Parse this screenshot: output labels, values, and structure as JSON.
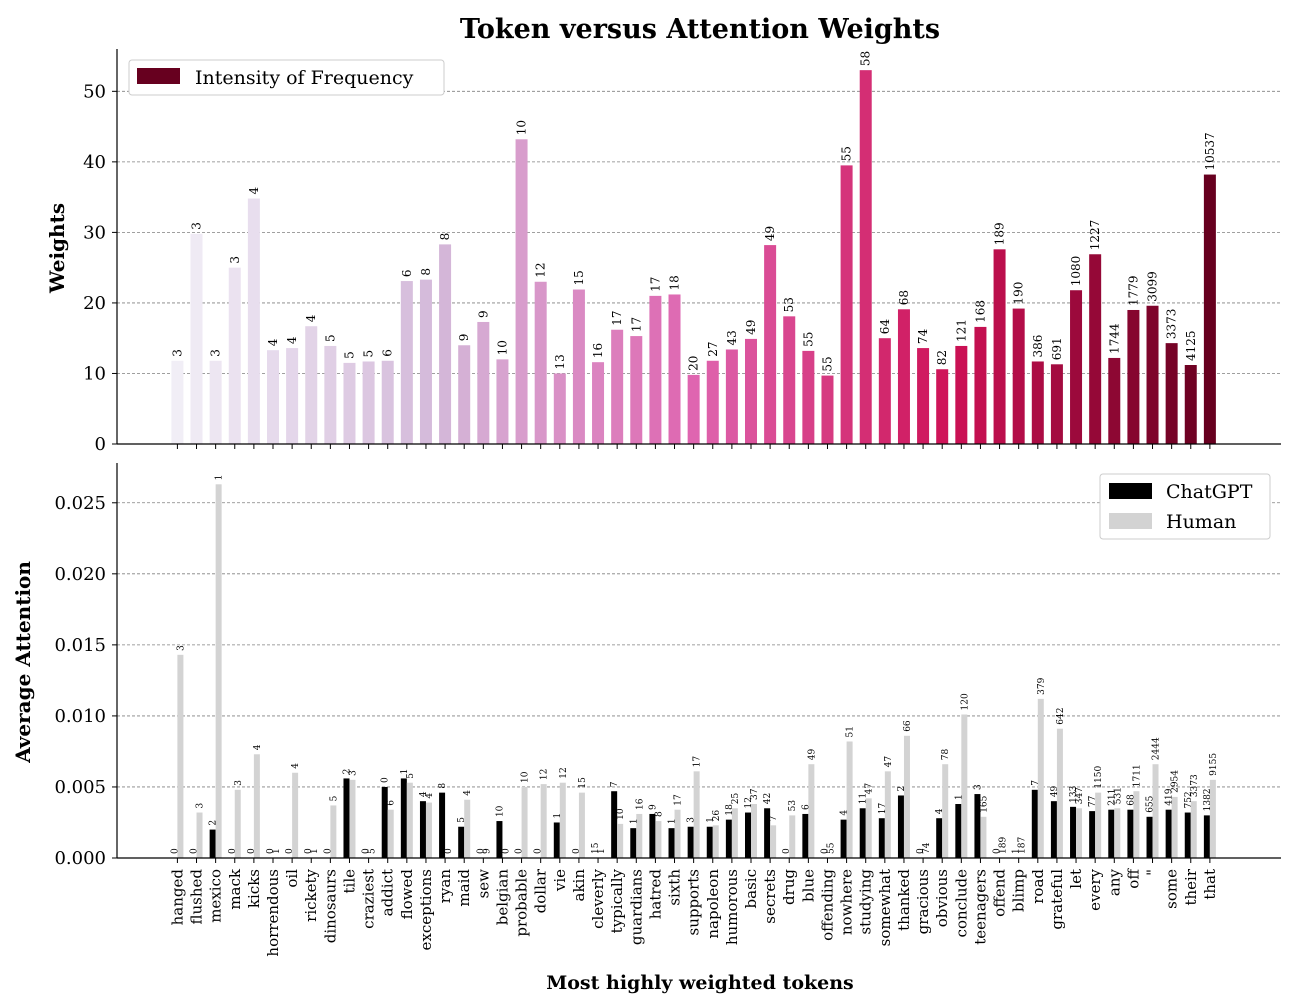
{
  "chart_data": {
    "type": "bar",
    "title": "Token versus Attention Weights",
    "xlabel": "Most highly weighted tokens",
    "tokens": [
      "hanged",
      "flushed",
      "mexico",
      "mack",
      "kicks",
      "horrendous",
      "oil",
      "rickety",
      "dinosaurs",
      "tile",
      "craziest",
      "addict",
      "flowed",
      "exceptions",
      "ryan",
      "maid",
      "sew",
      "belgian",
      "probable",
      "dollar",
      "vie",
      "akin",
      "cleverly",
      "typically",
      "guardians",
      "hatred",
      "sixth",
      "supports",
      "napoleon",
      "humorous",
      "basic",
      "secrets",
      "drug",
      "blue",
      "offending",
      "nowhere",
      "studying",
      "somewhat",
      "thanked",
      "gracious",
      "obvious",
      "conclude",
      "teenagers",
      "offend",
      "blimp",
      "road",
      "grateful",
      "let",
      "every",
      "any",
      "off",
      "\"",
      "some",
      "their",
      "that"
    ],
    "top": {
      "ylabel": "Weights",
      "ylim": [
        0,
        56
      ],
      "yticks": [
        "0",
        "10",
        "20",
        "30",
        "40",
        "50"
      ],
      "legend": "Intensity of Frequency",
      "legend_position": "top-left",
      "weights": [
        11.8,
        29.8,
        11.8,
        25.0,
        34.8,
        13.3,
        13.6,
        16.7,
        13.9,
        11.5,
        11.7,
        11.8,
        23.1,
        23.3,
        28.3,
        14.0,
        17.3,
        12.0,
        43.2,
        23.0,
        10.0,
        21.9,
        11.6,
        16.2,
        15.3,
        21.0,
        21.2,
        9.8,
        11.8,
        13.4,
        14.9,
        28.2,
        18.1,
        13.2,
        9.7,
        39.5,
        53.0,
        15.0,
        19.1,
        13.6,
        10.6,
        13.9,
        16.6,
        27.6,
        19.2,
        11.7,
        11.3,
        21.8,
        26.9,
        12.2,
        19.0,
        19.6,
        14.3,
        11.2,
        38.2
      ],
      "labels": [
        "3",
        "3",
        "3",
        "3",
        "4",
        "4",
        "4",
        "4",
        "5",
        "5",
        "5",
        "6",
        "6",
        "8",
        "8",
        "9",
        "9",
        "10",
        "10",
        "12",
        "13",
        "15",
        "16",
        "17",
        "17",
        "17",
        "18",
        "20",
        "27",
        "43",
        "49",
        "49",
        "53",
        "55",
        "55",
        "55",
        "58",
        "64",
        "68",
        "74",
        "82",
        "121",
        "168",
        "189",
        "190",
        "386",
        "691",
        "1080",
        "1227",
        "1744",
        "1779",
        "3099",
        "3373",
        "4125",
        "10537"
      ]
    },
    "bottom": {
      "ylabel": "Average Attention",
      "ylim": [
        0,
        0.0278
      ],
      "yticks": [
        "0.000",
        "0.005",
        "0.010",
        "0.015",
        "0.020",
        "0.025"
      ],
      "legend_position": "top-right",
      "series": [
        {
          "name": "ChatGPT",
          "color": "#000000",
          "values": [
            0,
            0,
            0.002,
            0,
            0,
            0,
            0,
            0,
            0,
            0.0056,
            0,
            0.005,
            0.0056,
            0.004,
            0.0046,
            0.0022,
            0,
            0.0026,
            0,
            0,
            0.0025,
            0,
            0,
            0.0047,
            0.0021,
            0.0031,
            0.0021,
            0.0022,
            0.0022,
            0.0027,
            0.0032,
            0.0035,
            0,
            0.0031,
            0,
            0.0027,
            0.0035,
            0.0028,
            0.0044,
            0,
            0.0028,
            0.0038,
            0.0045,
            0,
            0,
            0.0048,
            0.004,
            0.0036,
            0.0033,
            0.0034,
            0.0034,
            0.0029,
            0.0034,
            0.0032,
            0.003
          ],
          "labels": [
            "0",
            "0",
            "2",
            "0",
            "0",
            "0",
            "0",
            "0",
            "0",
            "2",
            "0",
            "0",
            "1",
            "4",
            "8",
            "5",
            "0",
            "10",
            "0",
            "0",
            "1",
            "0",
            "15",
            "7",
            "1",
            "9",
            "1",
            "3",
            "1",
            "18",
            "12",
            "42",
            "0",
            "6",
            "0",
            "4",
            "11",
            "17",
            "2",
            "0",
            "4",
            "1",
            "3",
            "0",
            "1",
            "7",
            "49",
            "133",
            "77",
            "211",
            "68",
            "655",
            "419",
            "752",
            "1382"
          ]
        },
        {
          "name": "Human",
          "color": "#d3d3d3",
          "values": [
            0.0143,
            0.0032,
            0.0263,
            0.0048,
            0.0073,
            0,
            0.006,
            0,
            0.0037,
            0.0055,
            0,
            0.0034,
            0.0053,
            0.0039,
            0,
            0.0041,
            0,
            0,
            0.005,
            0.0052,
            0.0053,
            0.0046,
            0,
            0.0024,
            0.0031,
            0.0026,
            0.0034,
            0.0061,
            0.0023,
            0.0035,
            0.0038,
            0.0023,
            0.003,
            0.0066,
            0,
            0.0082,
            0.0042,
            0.0061,
            0.0086,
            0,
            0.0066,
            0.0101,
            0.0029,
            0,
            0,
            0.0112,
            0.0091,
            0.0035,
            0.0046,
            0.0035,
            0.0047,
            0.0066,
            0.0043,
            0.004,
            0.0055
          ],
          "labels": [
            "3",
            "3",
            "1",
            "3",
            "4",
            "1",
            "4",
            "1",
            "5",
            "3",
            "5",
            "6",
            "5",
            "4",
            "0",
            "4",
            "9",
            "0",
            "10",
            "12",
            "12",
            "15",
            "1",
            "10",
            "16",
            "8",
            "17",
            "17",
            "26",
            "25",
            "37",
            "7",
            "53",
            "49",
            "55",
            "51",
            "47",
            "47",
            "66",
            "74",
            "78",
            "120",
            "165",
            "189",
            "187",
            "379",
            "642",
            "347",
            "1150",
            "531",
            "1711",
            "2444",
            "2954",
            "3373",
            "9155"
          ]
        }
      ]
    }
  }
}
